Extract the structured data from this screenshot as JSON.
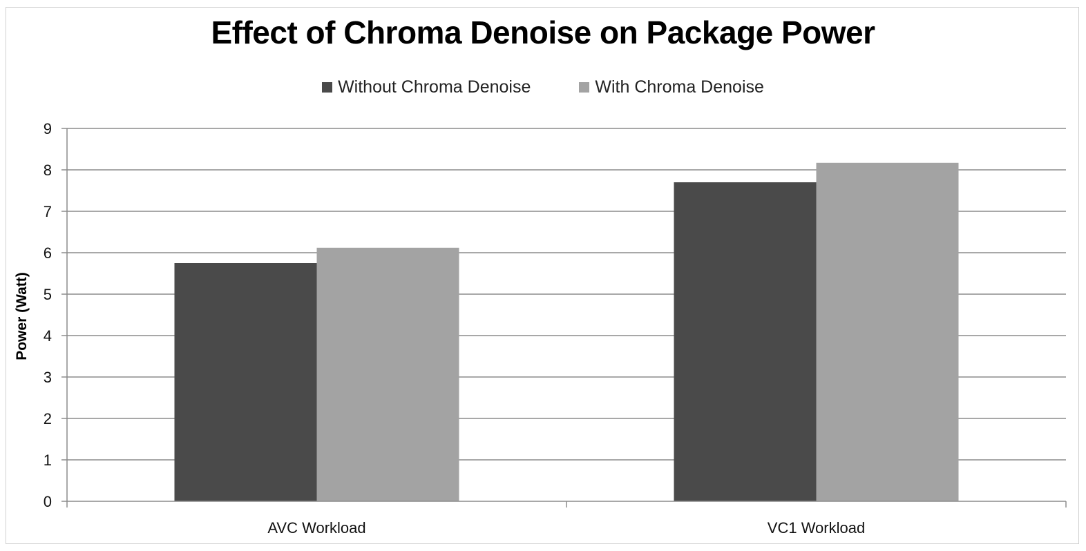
{
  "chart_data": {
    "type": "bar",
    "title": "Effect of Chroma Denoise on Package Power",
    "ylabel": "Power (Watt)",
    "xlabel": "",
    "categories": [
      "AVC Workload",
      "VC1 Workload"
    ],
    "series": [
      {
        "name": "Without Chroma Denoise",
        "values": [
          5.75,
          7.7
        ],
        "color": "#4a4a4a"
      },
      {
        "name": "With Chroma Denoise",
        "values": [
          6.12,
          8.17
        ],
        "color": "#a3a3a3"
      }
    ],
    "ylim": [
      0,
      9
    ],
    "yticks": [
      "0",
      "1",
      "2",
      "3",
      "4",
      "5",
      "6",
      "7",
      "8",
      "9"
    ],
    "grid": true,
    "legend_position": "top"
  }
}
